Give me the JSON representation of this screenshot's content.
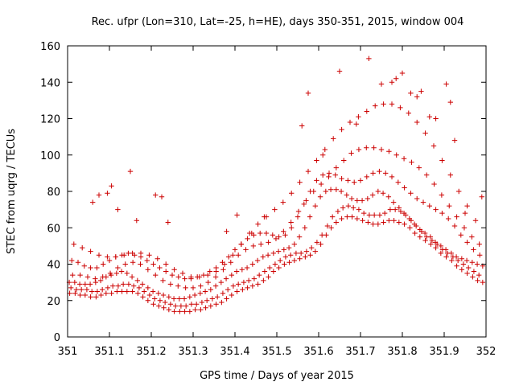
{
  "chart_data": {
    "type": "scatter",
    "title": "Rec. ufpr (Lon=310, Lat=-25, h=HE), days 350-351, 2015, window 004",
    "xlabel": "GPS time / Days of year 2015",
    "ylabel": "STEC from uqrg / TECUs",
    "xlim": [
      351,
      352
    ],
    "ylim": [
      0,
      160
    ],
    "xticks": [
      "351",
      "351.1",
      "351.2",
      "351.3",
      "351.4",
      "351.5",
      "351.6",
      "351.7",
      "351.8",
      "351.9",
      "352"
    ],
    "yticks": [
      "0",
      "20",
      "40",
      "60",
      "80",
      "100",
      "120",
      "140",
      "160"
    ],
    "grid": false,
    "legend": "none",
    "marker": "plus",
    "color": "#cc0000",
    "series": [
      {
        "x": [
          351.005,
          351.018,
          351.03,
          351.042,
          351.055,
          351.068,
          351.08,
          351.092,
          351.105,
          351.118,
          351.13,
          351.142,
          351.155,
          351.168,
          351.18,
          351.192,
          351.205,
          351.218,
          351.23,
          351.242,
          351.255,
          351.268,
          351.28,
          351.292,
          351.305,
          351.318,
          351.33,
          351.342,
          351.355,
          351.368,
          351.38,
          351.392,
          351.405,
          351.418,
          351.43,
          351.442,
          351.455,
          351.468,
          351.48,
          351.492,
          351.505,
          351.518,
          351.53,
          351.542,
          351.555,
          351.568,
          351.58,
          351.592,
          351.605,
          351.618,
          351.63,
          351.642,
          351.655,
          351.668,
          351.68,
          351.692,
          351.705,
          351.718,
          351.73,
          351.742,
          351.755,
          351.768,
          351.78,
          351.792,
          351.805,
          351.818,
          351.83,
          351.842,
          351.855,
          351.868,
          351.88,
          351.892,
          351.905,
          351.918,
          351.93,
          351.942,
          351.955,
          351.968,
          351.98,
          351.992
        ],
        "y": [
          24,
          24,
          23,
          23,
          22,
          22,
          23,
          24,
          24,
          25,
          25,
          25,
          25,
          24,
          22,
          20,
          18,
          17,
          16,
          15,
          14,
          14,
          14,
          14,
          15,
          15,
          16,
          17,
          18,
          19,
          21,
          23,
          25,
          26,
          27,
          28,
          29,
          31,
          33,
          36,
          38,
          40,
          41,
          42,
          43,
          44,
          45,
          47,
          51,
          56,
          60,
          63,
          65,
          66,
          66,
          65,
          64,
          63,
          62,
          62,
          63,
          64,
          64,
          63,
          62,
          60,
          57,
          55,
          53,
          51,
          49,
          46,
          44,
          42,
          39,
          37,
          35,
          33,
          31,
          30
        ]
      },
      {
        "x": [
          351.008,
          351.021,
          351.033,
          351.046,
          351.058,
          351.071,
          351.083,
          351.096,
          351.108,
          351.121,
          351.133,
          351.146,
          351.158,
          351.171,
          351.183,
          351.196,
          351.208,
          351.221,
          351.233,
          351.246,
          351.258,
          351.271,
          351.283,
          351.296,
          351.308,
          351.321,
          351.333,
          351.346,
          351.358,
          351.371,
          351.383,
          351.396,
          351.408,
          351.421,
          351.433,
          351.446,
          351.458,
          351.471,
          351.483,
          351.496,
          351.508,
          351.521,
          351.533,
          351.546,
          351.558,
          351.571,
          351.583,
          351.596,
          351.608,
          351.621,
          351.633,
          351.646,
          351.658,
          351.671,
          351.683,
          351.696,
          351.708,
          351.721,
          351.733,
          351.746,
          351.758,
          351.771,
          351.783,
          351.796,
          351.808,
          351.821,
          351.833,
          351.846,
          351.858,
          351.871,
          351.883,
          351.896,
          351.908,
          351.921,
          351.933,
          351.946,
          351.958,
          351.971,
          351.983
        ],
        "y": [
          27,
          26,
          26,
          26,
          25,
          25,
          26,
          27,
          28,
          28,
          29,
          29,
          28,
          27,
          25,
          23,
          21,
          20,
          19,
          18,
          17,
          17,
          17,
          18,
          18,
          19,
          20,
          21,
          22,
          24,
          26,
          28,
          29,
          30,
          31,
          32,
          34,
          36,
          38,
          40,
          42,
          44,
          45,
          46,
          46,
          47,
          49,
          52,
          56,
          61,
          66,
          69,
          71,
          72,
          71,
          70,
          68,
          67,
          67,
          67,
          68,
          70,
          70,
          69,
          67,
          64,
          61,
          58,
          55,
          53,
          51,
          48,
          46,
          44,
          42,
          40,
          38,
          36,
          34
        ]
      },
      {
        "x": [
          351.004,
          351.017,
          351.029,
          351.042,
          351.054,
          351.067,
          351.079,
          351.092,
          351.104,
          351.117,
          351.129,
          351.142,
          351.154,
          351.167,
          351.179,
          351.192,
          351.204,
          351.217,
          351.229,
          351.242,
          351.254,
          351.267,
          351.279,
          351.292,
          351.304,
          351.317,
          351.329,
          351.342,
          351.354,
          351.367,
          351.379,
          351.392,
          351.404,
          351.417,
          351.429,
          351.442,
          351.454,
          351.467,
          351.479,
          351.492,
          351.504,
          351.517,
          351.529,
          351.542,
          351.554,
          351.567,
          351.579,
          351.592,
          351.604,
          351.617,
          351.629,
          351.642,
          351.654,
          351.667,
          351.679,
          351.692,
          351.704,
          351.717,
          351.729,
          351.742,
          351.754,
          351.767,
          351.779,
          351.792,
          351.804,
          351.817,
          351.829,
          351.842,
          351.854,
          351.867,
          351.879,
          351.892,
          351.904,
          351.917,
          351.929,
          351.942,
          351.954,
          351.967,
          351.979,
          351.992
        ],
        "y": [
          30,
          30,
          29,
          29,
          29,
          30,
          31,
          33,
          34,
          35,
          36,
          35,
          33,
          31,
          29,
          27,
          25,
          24,
          23,
          22,
          21,
          21,
          21,
          22,
          23,
          24,
          25,
          26,
          28,
          30,
          32,
          34,
          36,
          37,
          38,
          40,
          42,
          44,
          45,
          46,
          47,
          48,
          49,
          51,
          55,
          60,
          66,
          72,
          77,
          80,
          81,
          81,
          80,
          78,
          76,
          75,
          75,
          76,
          78,
          80,
          79,
          77,
          74,
          71,
          68,
          65,
          62,
          59,
          57,
          55,
          52,
          50,
          48,
          46,
          44,
          43,
          42,
          41,
          40,
          39
        ]
      },
      {
        "x": [
          351.01,
          351.025,
          351.04,
          351.055,
          351.07,
          351.085,
          351.1,
          351.115,
          351.13,
          351.145,
          351.16,
          351.175,
          351.19,
          351.205,
          351.22,
          351.235,
          351.25,
          351.265,
          351.28,
          351.295,
          351.31,
          351.325,
          351.34,
          351.355,
          351.37,
          351.385,
          351.4,
          351.415,
          351.43,
          351.445,
          351.46,
          351.475,
          351.49,
          351.505,
          351.52,
          351.535,
          351.55,
          351.565,
          351.58,
          351.595,
          351.61,
          351.625,
          351.64,
          351.655,
          351.67,
          351.685,
          351.7,
          351.715,
          351.73,
          351.745,
          351.76,
          351.775,
          351.79,
          351.805,
          351.82,
          351.835,
          351.85,
          351.865,
          351.88,
          351.895,
          351.91,
          351.925,
          351.94,
          351.955,
          351.97,
          351.985
        ],
        "y": [
          42,
          41,
          39,
          38,
          38,
          40,
          42,
          44,
          45,
          46,
          45,
          44,
          42,
          40,
          38,
          36,
          34,
          33,
          32,
          32,
          33,
          34,
          36,
          38,
          41,
          44,
          48,
          51,
          54,
          56,
          57,
          57,
          56,
          55,
          56,
          60,
          66,
          73,
          80,
          86,
          89,
          90,
          89,
          87,
          86,
          85,
          86,
          88,
          90,
          91,
          90,
          88,
          85,
          82,
          79,
          76,
          74,
          72,
          70,
          68,
          65,
          61,
          56,
          52,
          48,
          45
        ]
      },
      {
        "x": [
          351.012,
          351.03,
          351.048,
          351.066,
          351.084,
          351.102,
          351.12,
          351.138,
          351.156,
          351.174,
          351.192,
          351.21,
          351.228,
          351.246,
          351.264,
          351.282,
          351.3,
          351.318,
          351.336,
          351.354,
          351.372,
          351.39,
          351.408,
          351.426,
          351.444,
          351.462,
          351.48,
          351.498,
          351.516,
          351.534,
          351.552,
          351.57,
          351.588,
          351.606,
          351.624,
          351.642,
          351.66,
          351.678,
          351.696,
          351.714,
          351.732,
          351.75,
          351.768,
          351.786,
          351.804,
          351.822,
          351.84,
          351.858,
          351.876,
          351.894,
          351.912,
          351.93,
          351.948,
          351.966,
          351.984
        ],
        "y": [
          34,
          34,
          33,
          32,
          33,
          35,
          38,
          40,
          41,
          40,
          37,
          34,
          31,
          29,
          28,
          27,
          27,
          28,
          30,
          33,
          37,
          41,
          45,
          48,
          50,
          51,
          52,
          54,
          58,
          63,
          69,
          75,
          80,
          84,
          88,
          93,
          97,
          101,
          103,
          104,
          104,
          103,
          102,
          100,
          98,
          96,
          93,
          89,
          84,
          78,
          72,
          66,
          60,
          55,
          51
        ]
      },
      {
        "x": [
          351.015,
          351.035,
          351.055,
          351.075,
          351.095,
          351.115,
          351.135,
          351.155,
          351.175,
          351.195,
          351.215,
          351.235,
          351.255,
          351.275,
          351.295,
          351.315,
          351.335,
          351.355,
          351.375,
          351.395,
          351.415,
          351.435,
          351.455,
          351.475,
          351.495,
          351.515,
          351.535,
          351.555,
          351.575,
          351.595,
          351.615,
          351.635,
          351.655,
          351.675,
          351.695,
          351.715,
          351.735,
          351.755,
          351.775,
          351.795,
          351.815,
          351.835,
          351.855,
          351.875,
          351.895,
          351.915,
          351.935,
          351.955,
          351.975
        ],
        "y": [
          51,
          49,
          47,
          45,
          44,
          44,
          45,
          46,
          46,
          45,
          43,
          40,
          37,
          35,
          33,
          33,
          34,
          36,
          40,
          45,
          51,
          57,
          62,
          66,
          70,
          74,
          79,
          85,
          91,
          97,
          103,
          109,
          114,
          118,
          121,
          124,
          127,
          128,
          128,
          126,
          123,
          118,
          112,
          105,
          97,
          89,
          80,
          72,
          64
        ]
      },
      {
        "x": [
          351.06,
          351.075,
          351.095,
          351.105,
          351.12,
          351.15,
          351.165,
          351.21,
          351.225,
          351.24,
          351.38,
          351.405,
          351.44,
          351.47,
          351.56,
          351.575,
          351.61,
          351.65,
          351.69,
          351.72,
          351.75,
          351.775,
          351.785,
          351.8,
          351.82,
          351.835,
          351.845,
          351.865,
          351.88,
          351.905,
          351.915,
          351.925,
          351.95,
          351.99
        ],
        "y": [
          74,
          78,
          79,
          83,
          70,
          91,
          64,
          78,
          77,
          63,
          58,
          67,
          57,
          66,
          116,
          134,
          100,
          146,
          117,
          153,
          139,
          140,
          142,
          145,
          134,
          132,
          135,
          121,
          120,
          139,
          129,
          108,
          68,
          77
        ]
      }
    ]
  }
}
